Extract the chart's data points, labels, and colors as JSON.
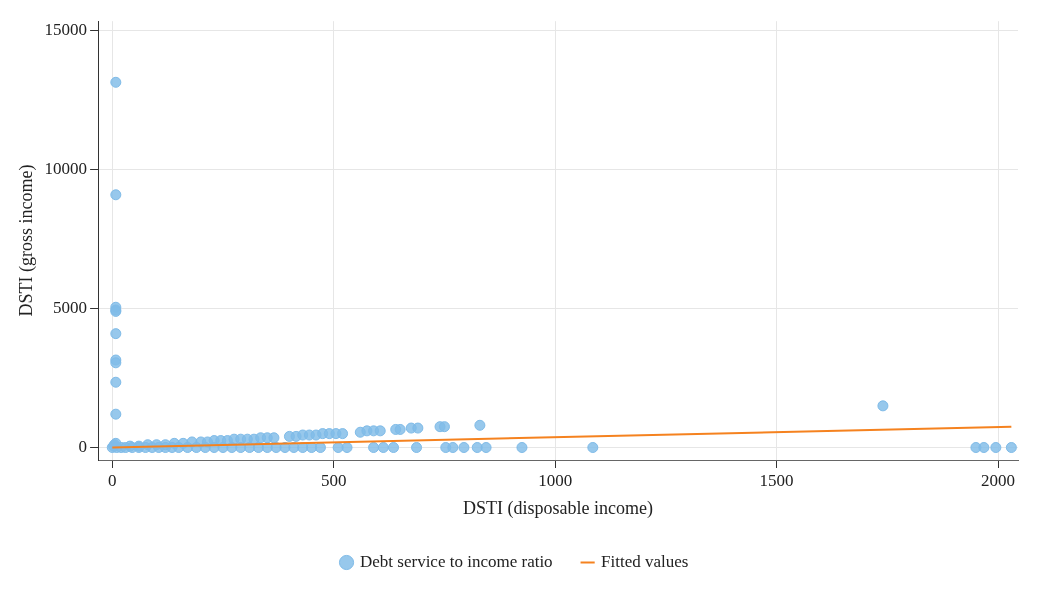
{
  "chart_data": {
    "type": "scatter",
    "xlabel": "DSTI (disposable income)",
    "ylabel": "DSTI (gross income)",
    "xlim": [
      -32,
      2045
    ],
    "ylim": [
      -450,
      15350
    ],
    "xticks": [
      0,
      500,
      1000,
      1500,
      2000
    ],
    "yticks": [
      0,
      5000,
      10000,
      15000
    ],
    "grid": true,
    "legend": "bottom",
    "series": [
      {
        "name": "Debt service to income ratio",
        "type": "scatter",
        "marker": "circle",
        "color": "#7fbbe8",
        "x": [
          8,
          8,
          8,
          8,
          8,
          8,
          8,
          8,
          8,
          8,
          8,
          5,
          3,
          40,
          60,
          80,
          100,
          120,
          140,
          160,
          180,
          200,
          215,
          230,
          245,
          260,
          275,
          290,
          305,
          320,
          335,
          350,
          365,
          400,
          415,
          430,
          445,
          460,
          475,
          490,
          505,
          520,
          560,
          575,
          590,
          605,
          640,
          650,
          675,
          690,
          740,
          750,
          830,
          1740,
          0,
          10,
          20,
          30,
          45,
          60,
          75,
          90,
          105,
          120,
          135,
          150,
          170,
          190,
          210,
          230,
          250,
          270,
          290,
          310,
          330,
          350,
          370,
          390,
          410,
          430,
          450,
          470,
          510,
          530,
          590,
          612,
          635,
          687,
          753,
          769,
          794,
          824,
          844,
          925,
          1085,
          1950,
          1968,
          1995,
          2030
        ],
        "values": [
          13150,
          9100,
          5050,
          4950,
          4900,
          4100,
          3150,
          3050,
          2350,
          1200,
          150,
          100,
          50,
          50,
          50,
          100,
          100,
          100,
          150,
          150,
          200,
          200,
          200,
          250,
          250,
          250,
          300,
          300,
          300,
          300,
          350,
          350,
          350,
          400,
          400,
          450,
          450,
          450,
          500,
          500,
          500,
          500,
          550,
          600,
          600,
          600,
          650,
          650,
          700,
          700,
          750,
          750,
          800,
          1500,
          0,
          0,
          0,
          0,
          0,
          0,
          0,
          0,
          0,
          0,
          0,
          0,
          0,
          0,
          0,
          0,
          0,
          0,
          0,
          0,
          0,
          0,
          0,
          0,
          0,
          0,
          0,
          0,
          0,
          0,
          0,
          0,
          0,
          0,
          0,
          0,
          0,
          0,
          0,
          0,
          0,
          0,
          0,
          0,
          0
        ]
      },
      {
        "name": "Fitted values",
        "type": "line",
        "marker": "none",
        "color": "#f5821f",
        "x": [
          0,
          2030
        ],
        "values": [
          0,
          750
        ]
      }
    ]
  }
}
